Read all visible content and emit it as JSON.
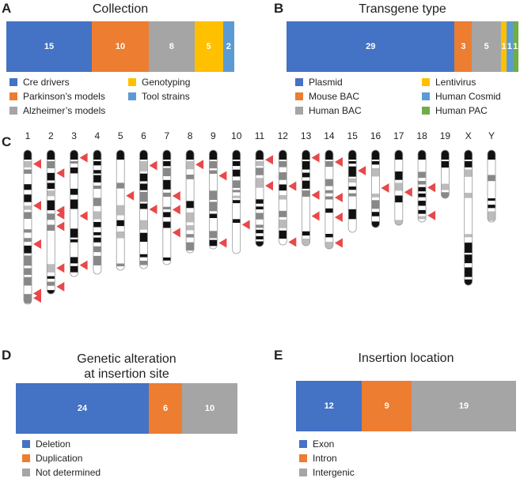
{
  "chart_data": [
    {
      "panel": "A",
      "type": "bar",
      "orientation": "horizontal-stacked",
      "title": "Collection",
      "series": [
        {
          "name": "Cre drivers",
          "value": 15,
          "color": "#4472C4"
        },
        {
          "name": "Parkinson’s models",
          "value": 10,
          "color": "#ED7D31"
        },
        {
          "name": "Alzheimer’s models",
          "value": 8,
          "color": "#A5A5A5"
        },
        {
          "name": "Genotyping",
          "value": 5,
          "color": "#FFC000"
        },
        {
          "name": "Tool strains",
          "value": 2,
          "color": "#5B9BD5"
        }
      ]
    },
    {
      "panel": "B",
      "type": "bar",
      "orientation": "horizontal-stacked",
      "title": "Transgene type",
      "series": [
        {
          "name": "Plasmid",
          "value": 29,
          "color": "#4472C4"
        },
        {
          "name": "Mouse BAC",
          "value": 3,
          "color": "#ED7D31"
        },
        {
          "name": "Human BAC",
          "value": 5,
          "color": "#A5A5A5"
        },
        {
          "name": "Lentivirus",
          "value": 1,
          "color": "#FFC000"
        },
        {
          "name": "Human Cosmid",
          "value": 1,
          "color": "#5B9BD5"
        },
        {
          "name": "Human PAC",
          "value": 1,
          "color": "#70AD47"
        }
      ]
    },
    {
      "panel": "C",
      "type": "ideogram",
      "title": "",
      "chromosomes": [
        {
          "name": "1",
          "length": 195,
          "insertions": [
            0.09,
            0.36,
            0.61,
            0.93,
            0.96
          ]
        },
        {
          "name": "2",
          "length": 182,
          "insertions": [
            0.16,
            0.42,
            0.45,
            0.53,
            0.82,
            0.95
          ]
        },
        {
          "name": "3",
          "length": 160,
          "insertions": [
            0.06,
            0.52,
            0.91
          ]
        },
        {
          "name": "4",
          "length": 157
        },
        {
          "name": "5",
          "length": 152,
          "insertions": [
            0.38
          ]
        },
        {
          "name": "6",
          "length": 150,
          "insertions": [
            0.13,
            0.5
          ]
        },
        {
          "name": "7",
          "length": 145,
          "insertions": [
            0.4,
            0.52,
            0.72
          ]
        },
        {
          "name": "8",
          "length": 130,
          "insertions": [
            0.14
          ]
        },
        {
          "name": "9",
          "length": 125,
          "insertions": [
            0.26,
            0.94
          ]
        },
        {
          "name": "10",
          "length": 131,
          "insertions": [
            0.72
          ]
        },
        {
          "name": "11",
          "length": 122,
          "insertions": [
            0.1,
            0.37
          ]
        },
        {
          "name": "12",
          "length": 120,
          "insertions": [
            0.38,
            0.97
          ]
        },
        {
          "name": "13",
          "length": 121,
          "insertions": [
            0.08,
            0.47,
            0.69
          ]
        },
        {
          "name": "14",
          "length": 125,
          "insertions": [
            0.12,
            0.48,
            0.68,
            0.94
          ]
        },
        {
          "name": "15",
          "length": 104,
          "insertions": [
            0.25
          ]
        },
        {
          "name": "16",
          "length": 98,
          "insertions": [
            0.49
          ]
        },
        {
          "name": "17",
          "length": 95,
          "insertions": [
            0.56
          ]
        },
        {
          "name": "18",
          "length": 91,
          "insertions": [
            0.52,
            0.91
          ]
        },
        {
          "name": "19",
          "length": 61
        },
        {
          "name": "X",
          "length": 171
        },
        {
          "name": "Y",
          "length": 91
        }
      ]
    },
    {
      "panel": "D",
      "type": "bar",
      "orientation": "horizontal-stacked",
      "title": "Genetic alteration at insertion site",
      "series": [
        {
          "name": "Deletion",
          "value": 24,
          "color": "#4472C4"
        },
        {
          "name": "Duplication",
          "value": 6,
          "color": "#ED7D31"
        },
        {
          "name": "Not determined",
          "value": 10,
          "color": "#A5A5A5"
        }
      ]
    },
    {
      "panel": "E",
      "type": "bar",
      "orientation": "horizontal-stacked",
      "title": "Insertion location",
      "series": [
        {
          "name": "Exon",
          "value": 12,
          "color": "#4472C4"
        },
        {
          "name": "Intron",
          "value": 9,
          "color": "#ED7D31"
        },
        {
          "name": "Intergenic",
          "value": 19,
          "color": "#A5A5A5"
        }
      ]
    }
  ],
  "panels": {
    "a": {
      "letter": "A",
      "title": "Collection"
    },
    "b": {
      "letter": "B",
      "title": "Transgene type"
    },
    "c": {
      "letter": "C"
    },
    "d": {
      "letter": "D",
      "title_line1": "Genetic alteration",
      "title_line2": "at insertion site"
    },
    "e": {
      "letter": "E",
      "title": "Insertion location"
    }
  },
  "colors": {
    "arrow": "#E8484A"
  }
}
